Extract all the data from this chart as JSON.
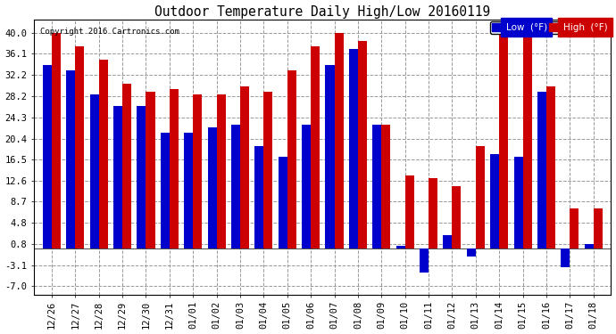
{
  "title": "Outdoor Temperature Daily High/Low 20160119",
  "copyright": "Copyright 2016 Cartronics.com",
  "dates": [
    "12/26",
    "12/27",
    "12/28",
    "12/29",
    "12/30",
    "12/31",
    "01/01",
    "01/02",
    "01/03",
    "01/04",
    "01/05",
    "01/06",
    "01/07",
    "01/08",
    "01/09",
    "01/10",
    "01/11",
    "01/12",
    "01/13",
    "01/14",
    "01/15",
    "01/16",
    "01/17",
    "01/18"
  ],
  "low_values": [
    34.0,
    33.0,
    28.5,
    26.5,
    26.5,
    21.5,
    21.5,
    22.5,
    23.0,
    19.0,
    17.0,
    23.0,
    34.0,
    37.0,
    23.0,
    0.5,
    -4.5,
    2.5,
    -1.5,
    17.5,
    17.0,
    29.0,
    -3.5,
    0.8
  ],
  "high_values": [
    40.0,
    37.5,
    35.0,
    30.5,
    29.0,
    29.5,
    28.5,
    28.5,
    30.0,
    29.0,
    33.0,
    37.5,
    40.0,
    38.5,
    23.0,
    13.5,
    13.0,
    11.5,
    19.0,
    40.5,
    40.0,
    30.0,
    7.5,
    7.5
  ],
  "low_color": "#0000cc",
  "high_color": "#cc0000",
  "yticks": [
    -7.0,
    -3.1,
    0.8,
    4.8,
    8.7,
    12.6,
    16.5,
    20.4,
    24.3,
    28.2,
    32.2,
    36.1,
    40.0
  ],
  "ymin": -8.5,
  "ymax": 42.5,
  "background_color": "#ffffff",
  "plot_bg_color": "#ffffff",
  "grid_color": "#999999",
  "bar_width": 0.38,
  "legend_low_label": "Low  (°F)",
  "legend_high_label": "High  (°F)",
  "figwidth": 6.9,
  "figheight": 3.75,
  "dpi": 100
}
